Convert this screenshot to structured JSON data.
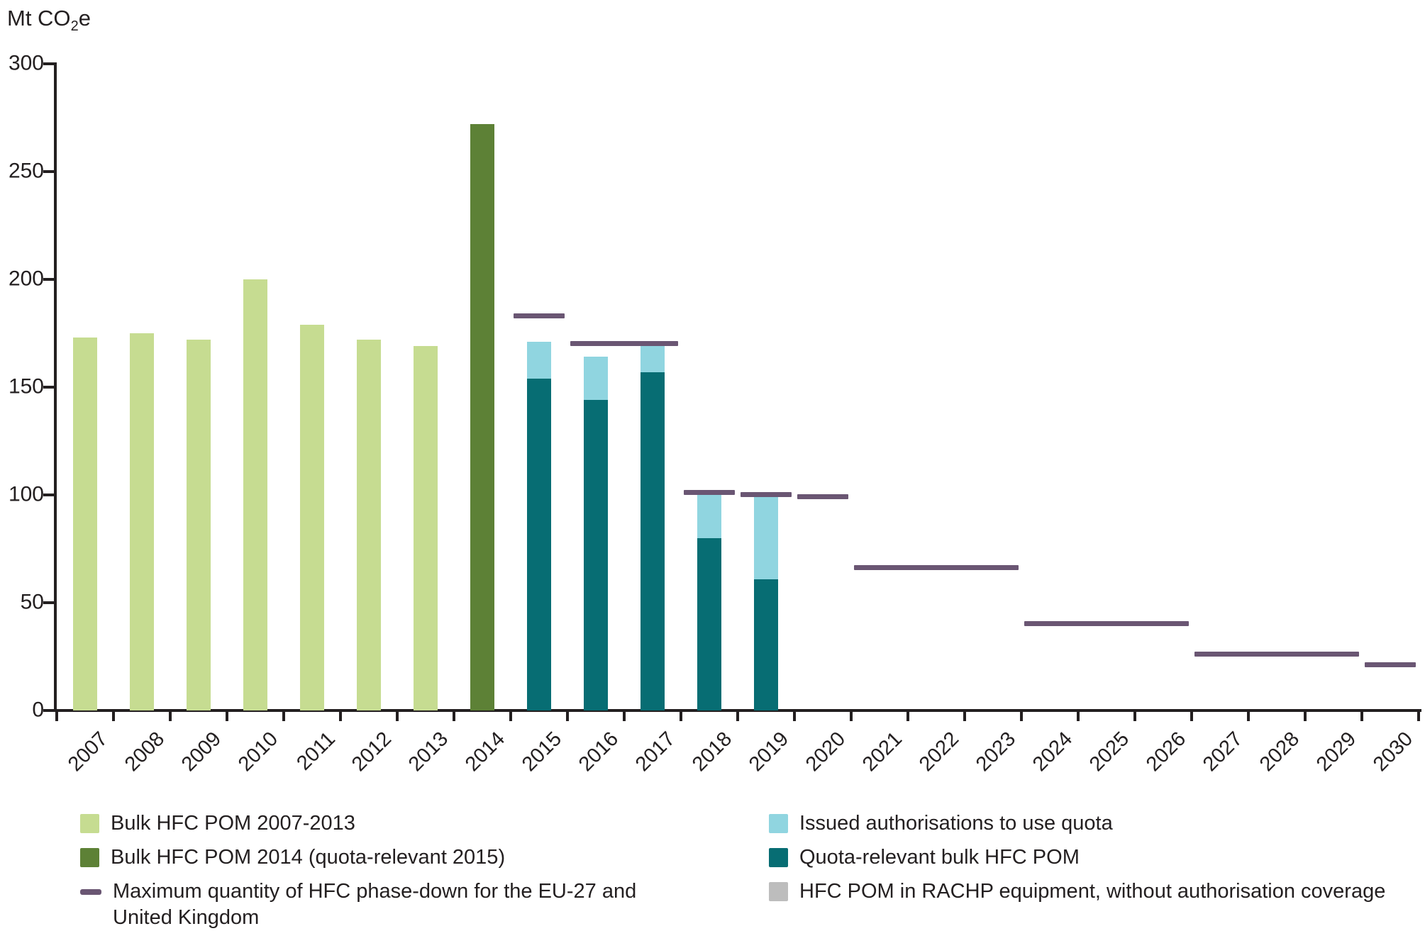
{
  "unit_label": {
    "prefix": "Mt CO",
    "sub": "2",
    "suffix": "e"
  },
  "colors": {
    "bulk_green": "#c6dc91",
    "bulk_2014_olive": "#5d8136",
    "quota_teal": "#076d73",
    "issued_blue": "#90d5e0",
    "max_line_purple": "#6a5673",
    "rachp_gray": "#bdbdbd",
    "axis": "#231f20",
    "text": "#231f20"
  },
  "chart_data": {
    "type": "bar",
    "stacked": true,
    "title": "",
    "xlabel": "",
    "ylabel": "Mt CO2e",
    "grid": false,
    "legend_position": "bottom",
    "ylim": [
      0,
      300
    ],
    "yticks": [
      0,
      50,
      100,
      150,
      200,
      250,
      300
    ],
    "categories": [
      "2007",
      "2008",
      "2009",
      "2010",
      "2011",
      "2012",
      "2013",
      "2014",
      "2015",
      "2016",
      "2017",
      "2018",
      "2019",
      "2020",
      "2021",
      "2022",
      "2023",
      "2024",
      "2025",
      "2026",
      "2027",
      "2028",
      "2029",
      "2030"
    ],
    "series": [
      {
        "name": "Bulk HFC POM 2007-2013",
        "slug": "bulk-hfc-pom",
        "color": "#c6dc91",
        "values": {
          "2007": 173,
          "2008": 175,
          "2009": 172,
          "2010": 200,
          "2011": 179,
          "2012": 172,
          "2013": 169
        }
      },
      {
        "name": "Bulk HFC POM 2014 (quota-relevant 2015)",
        "slug": "bulk-hfc-pom-2014",
        "color": "#5d8136",
        "values": {
          "2014": 272
        }
      },
      {
        "name": "Quota-relevant bulk HFC POM",
        "slug": "quota-relevant-bulk-hfc-pom",
        "color": "#076d73",
        "values": {
          "2015": 154,
          "2016": 144,
          "2017": 157,
          "2018": 80,
          "2019": 61
        }
      },
      {
        "name": "Issued authorisations to use quota",
        "slug": "issued-authorisations",
        "color": "#90d5e0",
        "values": {
          "2015": 17,
          "2016": 20,
          "2017": 12,
          "2018": 20,
          "2019": 38
        }
      },
      {
        "name": "HFC POM in RACHP equipment, without authorisation coverage",
        "slug": "hfc-pom-rachp",
        "color": "#bdbdbd",
        "values": {}
      }
    ],
    "max_line": {
      "name": "Maximum quantity of HFC phase-down for the EU-27 and United Kingdom",
      "color": "#6a5673",
      "segments": [
        {
          "start": "2015",
          "end": "2015",
          "value": 183
        },
        {
          "start": "2016",
          "end": "2017",
          "value": 170
        },
        {
          "start": "2018",
          "end": "2018",
          "value": 101
        },
        {
          "start": "2019",
          "end": "2019",
          "value": 100
        },
        {
          "start": "2020",
          "end": "2020",
          "value": 99
        },
        {
          "start": "2021",
          "end": "2023",
          "value": 66
        },
        {
          "start": "2024",
          "end": "2026",
          "value": 40
        },
        {
          "start": "2027",
          "end": "2029",
          "value": 26
        },
        {
          "start": "2030",
          "end": "2030",
          "value": 21
        }
      ]
    }
  },
  "legend": {
    "left": [
      {
        "label": "Bulk HFC POM 2007-2013",
        "swatch": "square",
        "color": "#c6dc91"
      },
      {
        "label": "Bulk HFC POM 2014 (quota-relevant 2015)",
        "swatch": "square",
        "color": "#5d8136"
      },
      {
        "swatch": "dash",
        "color": "#6a5673",
        "lines": [
          "Maximum quantity of HFC phase-down for the EU-27 and",
          "United Kingdom"
        ]
      }
    ],
    "right": [
      {
        "label": "Issued authorisations to use quota",
        "swatch": "square",
        "color": "#90d5e0"
      },
      {
        "label": "Quota-relevant bulk HFC POM",
        "swatch": "square",
        "color": "#076d73"
      },
      {
        "label": "HFC POM in RACHP equipment, without authorisation coverage",
        "swatch": "square",
        "color": "#bdbdbd"
      }
    ]
  }
}
